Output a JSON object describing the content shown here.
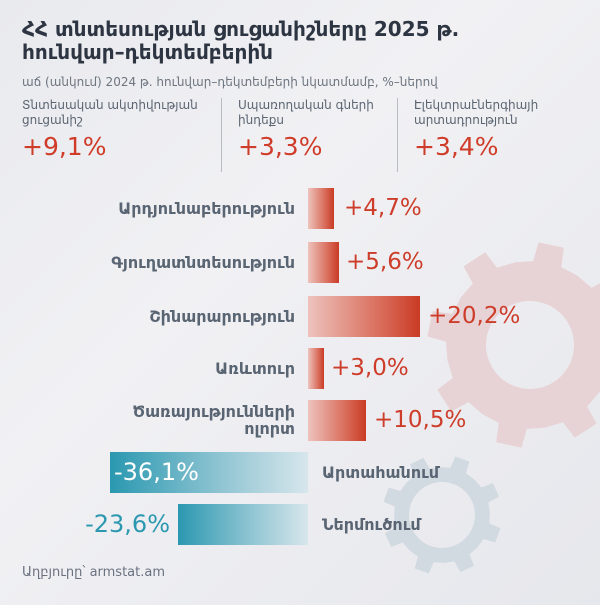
{
  "header": {
    "title": "ՀՀ տնտեսության ցուցանիշները 2025 թ. հունվար–դեկտեմբերին",
    "subtitle": "աճ (անկում) 2024 թ. հունվար–դեկտեմբերի նկատմամբ, %–ներով"
  },
  "kpis": [
    {
      "label": "Տնտեսական ակտիվության ցուցանիշ",
      "value": "+9,1%"
    },
    {
      "label": "Սպառողական գների ինդեքս",
      "value": "+3,3%"
    },
    {
      "label": "Էլեկտրաէներգիայի արտադրություն",
      "value": "+3,4%"
    }
  ],
  "colors": {
    "positive": "#cd3d2a",
    "negative": "#2b98b0",
    "text": "#5a6573",
    "title": "#2d3542"
  },
  "chart_data": {
    "type": "bar",
    "orientation": "horizontal",
    "title": "ՀՀ տնտեսության ցուցանիշները 2025 թ. հունվար–դեկտեմբերին",
    "subtitle": "աճ (անկում) 2024 թ. հունվար–դեկտեմբերի նկատմամբ, %–ներով",
    "categories": [
      "Արդյունաբերություն",
      "Գյուղատնտեսություն",
      "Շինարարություն",
      "Առևտուր",
      "Ծառայությունների ոլորտ",
      "Արտահանում",
      "Ներմուծում"
    ],
    "values": [
      4.7,
      5.6,
      20.2,
      3.0,
      10.5,
      -36.1,
      -23.6
    ],
    "labels": [
      "+4,7%",
      "+5,6%",
      "+20,2%",
      "+3,0%",
      "+10,5%",
      "-36,1%",
      "-23,6%"
    ],
    "unit": "%",
    "grid": false,
    "legend": null
  },
  "rows": [
    {
      "label": "Արդյունաբերություն",
      "value": "+4,7%"
    },
    {
      "label": "Գյուղատնտեսություն",
      "value": "+5,6%"
    },
    {
      "label": "Շինարարություն",
      "value": "+20,2%"
    },
    {
      "label": "Առևտուր",
      "value": "+3,0%"
    },
    {
      "label_line1": "Ծառայությունների",
      "label_line2": "ոլորտ",
      "value": "+10,5%"
    },
    {
      "label": "Արտահանում",
      "value": "-36,1%"
    },
    {
      "label": "Ներմուծում",
      "value": "-23,6%"
    }
  ],
  "footer": {
    "source": "Աղբյուրը՝ armstat.am"
  }
}
